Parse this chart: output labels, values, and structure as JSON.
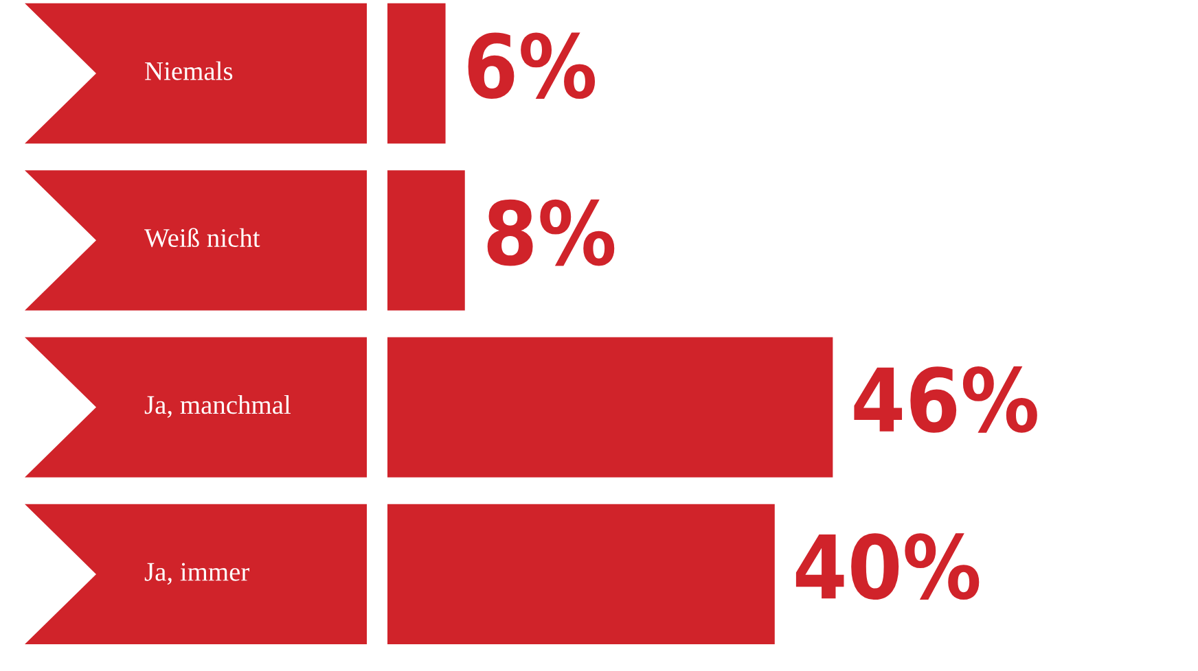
{
  "chart_data": {
    "type": "bar",
    "orientation": "horizontal",
    "categories": [
      "Niemals",
      "Weiß nicht",
      "Ja, manchmal",
      "Ja, immer"
    ],
    "values": [
      6,
      8,
      46,
      40
    ],
    "color": "#d0232a",
    "value_labels": [
      "6%",
      "8%",
      "46%",
      "40%"
    ]
  }
}
